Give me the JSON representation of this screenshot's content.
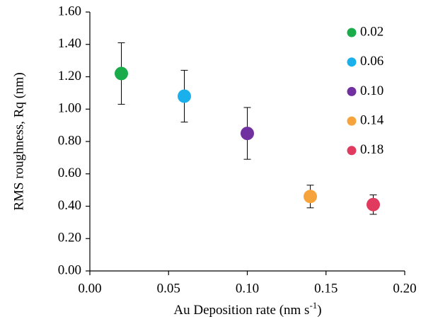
{
  "chart_data": {
    "type": "scatter",
    "xlabel": {
      "text": "Au Deposition rate (nm s",
      "sup": "-1",
      "tail": ")"
    },
    "ylabel": "RMS roughness, Rq (nm)",
    "xlim": [
      0,
      0.2
    ],
    "ylim": [
      0,
      1.6
    ],
    "xticks": [
      {
        "value": 0,
        "label": "0.00"
      },
      {
        "value": 0.05,
        "label": "0.05"
      },
      {
        "value": 0.1,
        "label": "0.10"
      },
      {
        "value": 0.15,
        "label": "0.15"
      },
      {
        "value": 0.2,
        "label": "0.20"
      }
    ],
    "yticks": [
      {
        "value": 0,
        "label": "0.00"
      },
      {
        "value": 0.2,
        "label": "0.20"
      },
      {
        "value": 0.4,
        "label": "0.40"
      },
      {
        "value": 0.6,
        "label": "0.60"
      },
      {
        "value": 0.8,
        "label": "0.80"
      },
      {
        "value": 1.0,
        "label": "1.00"
      },
      {
        "value": 1.2,
        "label": "1.20"
      },
      {
        "value": 1.4,
        "label": "1.40"
      },
      {
        "value": 1.6,
        "label": "1.60"
      }
    ],
    "legend": "upper right",
    "series": [
      {
        "name": "0.02",
        "color": "#1aab4b",
        "x": [
          0.02
        ],
        "values": [
          1.22
        ],
        "errors": [
          0.19
        ]
      },
      {
        "name": "0.06",
        "color": "#1ab0ec",
        "x": [
          0.06
        ],
        "values": [
          1.08
        ],
        "errors": [
          0.16
        ]
      },
      {
        "name": "0.10",
        "color": "#7030a0",
        "x": [
          0.1
        ],
        "values": [
          0.85
        ],
        "errors": [
          0.16
        ]
      },
      {
        "name": "0.14",
        "color": "#f7a33c",
        "x": [
          0.14
        ],
        "values": [
          0.46
        ],
        "errors": [
          0.07
        ]
      },
      {
        "name": "0.18",
        "color": "#e03a5f",
        "x": [
          0.18
        ],
        "values": [
          0.41
        ],
        "errors": [
          0.06
        ]
      }
    ]
  }
}
